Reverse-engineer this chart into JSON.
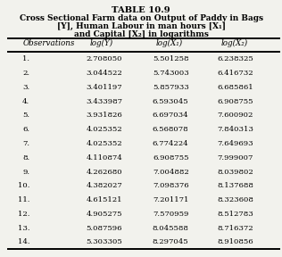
{
  "title_line1": "TABLE 10.9",
  "title_line2": "Cross Sectional Farm data on Output of Paddy in Bags",
  "title_line3": "[Y], Human Labour in man hours [X₁]",
  "title_line4": "and Capital [X₂] in logarithms",
  "col_headers": [
    "Observations",
    "log(Y)",
    "log(X₁)",
    "log(X₂)"
  ],
  "observations": [
    1,
    2,
    3,
    4,
    5,
    6,
    7,
    8,
    9,
    10,
    11,
    12,
    13,
    14
  ],
  "log_Y": [
    2.70805,
    3.044522,
    3.401197,
    3.433987,
    3.931826,
    4.025352,
    4.025352,
    4.110874,
    4.26268,
    4.382027,
    4.615121,
    4.905275,
    5.087596,
    5.303305
  ],
  "log_X1": [
    5.501258,
    5.743003,
    5.857933,
    6.593045,
    6.697034,
    6.568078,
    6.774224,
    6.908755,
    7.004882,
    7.098376,
    7.201171,
    7.570959,
    8.045588,
    8.297045
  ],
  "log_X2": [
    6.238325,
    6.416732,
    6.685861,
    6.908755,
    7.600902,
    7.840313,
    7.649693,
    7.999007,
    8.039802,
    8.137688,
    8.323608,
    8.512783,
    8.716372,
    8.910856
  ],
  "bg_color": "#f2f2ed"
}
